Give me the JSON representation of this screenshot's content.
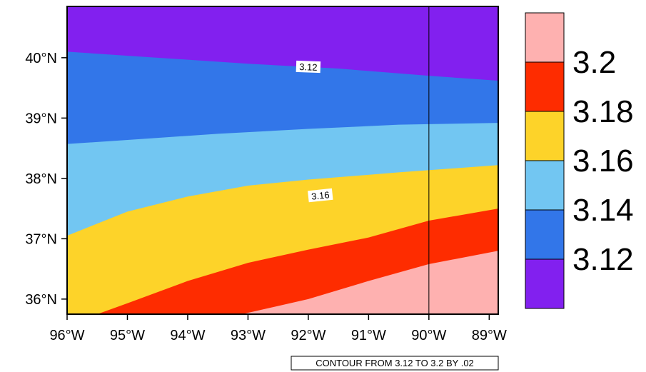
{
  "chart_data": {
    "type": "heatmap",
    "title": "",
    "xlabel": "",
    "ylabel": "",
    "x_ticks": [
      "96°W",
      "95°W",
      "94°W",
      "93°W",
      "92°W",
      "91°W",
      "90°W",
      "89°W"
    ],
    "x_tick_values": [
      -96,
      -95,
      -94,
      -93,
      -92,
      -91,
      -90,
      -89
    ],
    "y_ticks": [
      "36°N",
      "37°N",
      "38°N",
      "39°N",
      "40°N"
    ],
    "y_tick_values": [
      36,
      37,
      38,
      39,
      40
    ],
    "xlim": [
      -96,
      -88.85
    ],
    "ylim": [
      35.75,
      40.85
    ],
    "meridian_line": -90,
    "levels": [
      "3.12",
      "3.14",
      "3.16",
      "3.18",
      "3.2"
    ],
    "level_values": [
      3.12,
      3.14,
      3.16,
      3.18,
      3.2
    ],
    "colors": [
      "#8220ef",
      "#3276e9",
      "#72c6f2",
      "#fdd329",
      "#fe2c00",
      "#feb1b0"
    ],
    "contour_boundaries": [
      {
        "level": 3.12,
        "points": [
          [
            -96.0,
            40.1
          ],
          [
            -94.5,
            40.0
          ],
          [
            -93.0,
            39.9
          ],
          [
            -91.5,
            39.82
          ],
          [
            -90.0,
            39.7
          ],
          [
            -88.85,
            39.62
          ]
        ]
      },
      {
        "level": 3.14,
        "points": [
          [
            -96.0,
            38.57
          ],
          [
            -94.8,
            38.65
          ],
          [
            -93.5,
            38.74
          ],
          [
            -92.0,
            38.82
          ],
          [
            -90.5,
            38.89
          ],
          [
            -88.85,
            38.92
          ]
        ]
      },
      {
        "level": 3.16,
        "points": [
          [
            -96.0,
            37.05
          ],
          [
            -95.0,
            37.45
          ],
          [
            -94.0,
            37.7
          ],
          [
            -93.0,
            37.88
          ],
          [
            -92.0,
            37.98
          ],
          [
            -90.5,
            38.1
          ],
          [
            -88.85,
            38.22
          ]
        ]
      },
      {
        "level": 3.18,
        "points": [
          [
            -95.5,
            35.75
          ],
          [
            -95.0,
            35.93
          ],
          [
            -94.0,
            36.3
          ],
          [
            -93.0,
            36.6
          ],
          [
            -92.0,
            36.82
          ],
          [
            -91.0,
            37.02
          ],
          [
            -90.0,
            37.3
          ],
          [
            -88.85,
            37.5
          ]
        ]
      },
      {
        "level": 3.2,
        "points": [
          [
            -93.1,
            35.75
          ],
          [
            -92.0,
            36.0
          ],
          [
            -91.0,
            36.3
          ],
          [
            -90.0,
            36.58
          ],
          [
            -88.85,
            36.8
          ]
        ]
      }
    ],
    "contour_labels": [
      {
        "text": "3.12",
        "lon": -92.0,
        "lat": 39.85
      },
      {
        "text": "3.16",
        "lon": -91.8,
        "lat": 37.72
      }
    ],
    "footer_text": "CONTOUR FROM 3.12 TO 3.2 BY .02"
  }
}
